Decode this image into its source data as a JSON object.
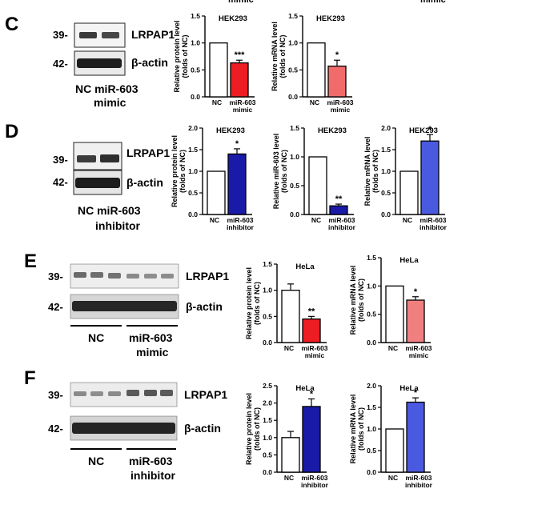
{
  "top_cut_labels": [
    "mimic",
    "mimic"
  ],
  "panels": [
    {
      "letter": "C",
      "blot": {
        "mw_labels": [
          "39-",
          "42-"
        ],
        "band_labels": [
          "LRPAP1",
          "β-actin"
        ],
        "lane_caption_lines": [
          "NC miR-603",
          "mimic"
        ]
      },
      "charts": [
        {
          "type": "bar",
          "title": "HEK293",
          "ylabel_lines": [
            "Relative protein level",
            "(folds of NC)"
          ],
          "categories": [
            "NC",
            "miR-603 mimic"
          ],
          "values": [
            1.0,
            0.63
          ],
          "errors": [
            0,
            0.05
          ],
          "ylim": [
            0,
            1.5
          ],
          "yticks": [
            "0.0",
            "0.5",
            "1.0",
            "1.5"
          ],
          "significance": "***",
          "bar_colors": [
            "#ffffff",
            "#ee1c23"
          ]
        },
        {
          "type": "bar",
          "title": "HEK293",
          "ylabel_lines": [
            "Relative mRNA level",
            "(folds of NC)"
          ],
          "categories": [
            "NC",
            "miR-603 mimic"
          ],
          "values": [
            1.0,
            0.57
          ],
          "errors": [
            0,
            0.11
          ],
          "ylim": [
            0,
            1.5
          ],
          "yticks": [
            "0.0",
            "0.5",
            "1.0",
            "1.5"
          ],
          "significance": "*",
          "bar_colors": [
            "#ffffff",
            "#f26b6b"
          ]
        }
      ]
    },
    {
      "letter": "D",
      "blot": {
        "mw_labels": [
          "39-",
          "42-"
        ],
        "band_labels": [
          "LRPAP1",
          "β-actin"
        ],
        "lane_caption_lines": [
          "NC miR-603",
          "inhibitor"
        ]
      },
      "charts": [
        {
          "type": "bar",
          "title": "HEK293",
          "ylabel_lines": [
            "Relative protein level",
            "(folds of NC)"
          ],
          "categories": [
            "NC",
            "miR-603 inhibitor"
          ],
          "values": [
            1.0,
            1.4
          ],
          "errors": [
            0,
            0.12
          ],
          "ylim": [
            0,
            2.0
          ],
          "yticks": [
            "0.0",
            "0.5",
            "1.0",
            "1.5",
            "2.0"
          ],
          "significance": "*",
          "bar_colors": [
            "#ffffff",
            "#1a1aa8"
          ]
        },
        {
          "type": "bar",
          "title": "HEK293",
          "ylabel_lines": [
            "Relative miR-603 level",
            "(folds of NC)"
          ],
          "categories": [
            "NC",
            "miR-603 inhibitor"
          ],
          "values": [
            1.0,
            0.15
          ],
          "errors": [
            0,
            0.03
          ],
          "ylim": [
            0,
            1.5
          ],
          "yticks": [
            "0.0",
            "0.5",
            "1.0",
            "1.5"
          ],
          "significance": "**",
          "bar_colors": [
            "#ffffff",
            "#1a1aa8"
          ]
        },
        {
          "type": "bar",
          "title": "HEK293",
          "ylabel_lines": [
            "Relative mRNA level",
            "(folds of NC)"
          ],
          "categories": [
            "NC",
            "miR-603 inhibitor"
          ],
          "values": [
            1.0,
            1.7
          ],
          "errors": [
            0,
            0.15
          ],
          "ylim": [
            0,
            2.0
          ],
          "yticks": [
            "0.0",
            "0.5",
            "1.0",
            "1.5",
            "2.0"
          ],
          "significance": "*",
          "bar_colors": [
            "#ffffff",
            "#4a5ae0"
          ]
        }
      ]
    },
    {
      "letter": "E",
      "blot": {
        "mw_labels": [
          "39-",
          "42-"
        ],
        "band_labels": [
          "LRPAP1",
          "β-actin"
        ],
        "group_labels": [
          "NC",
          "miR-603",
          "mimic"
        ]
      },
      "charts": [
        {
          "type": "bar",
          "title": "HeLa",
          "ylabel_lines": [
            "Relative protein level",
            "(folds of NC)"
          ],
          "categories": [
            "NC",
            "miR-603 mimic"
          ],
          "values": [
            1.0,
            0.45
          ],
          "errors": [
            0.12,
            0.05
          ],
          "ylim": [
            0,
            1.5
          ],
          "yticks": [
            "0.0",
            "0.5",
            "1.0",
            "1.5"
          ],
          "significance": "**",
          "bar_colors": [
            "#ffffff",
            "#ee1c23"
          ]
        },
        {
          "type": "bar",
          "title": "HeLa",
          "ylabel_lines": [
            "Relative mRNA level",
            "(folds of NC)"
          ],
          "categories": [
            "NC",
            "miR-603 mimic"
          ],
          "values": [
            1.0,
            0.75
          ],
          "errors": [
            0,
            0.06
          ],
          "ylim": [
            0,
            1.5
          ],
          "yticks": [
            "0.0",
            "0.5",
            "1.0",
            "1.5"
          ],
          "significance": "*",
          "bar_colors": [
            "#ffffff",
            "#f07f7f"
          ]
        }
      ]
    },
    {
      "letter": "F",
      "blot": {
        "mw_labels": [
          "39-",
          "42-"
        ],
        "band_labels": [
          "LRPAP1",
          "β-actin"
        ],
        "group_labels": [
          "NC",
          "miR-603",
          "inhibitor"
        ]
      },
      "charts": [
        {
          "type": "bar",
          "title": "HeLa",
          "ylabel_lines": [
            "Relative protein level",
            "(folds of NC)"
          ],
          "categories": [
            "NC",
            "miR-603 inhibitor"
          ],
          "values": [
            1.0,
            1.9
          ],
          "errors": [
            0.18,
            0.22
          ],
          "ylim": [
            0,
            2.5
          ],
          "yticks": [
            "0.0",
            "0.5",
            "1.0",
            "1.5",
            "2.0",
            "2.5"
          ],
          "significance": "*",
          "bar_colors": [
            "#ffffff",
            "#1a1aa8"
          ]
        },
        {
          "type": "bar",
          "title": "HeLa",
          "ylabel_lines": [
            "Relative mRNA level",
            "(folds of NC)"
          ],
          "categories": [
            "NC",
            "miR-603 inhibitor"
          ],
          "values": [
            1.0,
            1.62
          ],
          "errors": [
            0,
            0.1
          ],
          "ylim": [
            0,
            2.0
          ],
          "yticks": [
            "0.0",
            "0.5",
            "1.0",
            "1.5",
            "2.0"
          ],
          "significance": "*",
          "bar_colors": [
            "#ffffff",
            "#4a5ae0"
          ]
        }
      ]
    }
  ],
  "chart_data": [
    {
      "panel": "C",
      "type": "bar",
      "title": "HEK293",
      "ylabel": "Relative protein level (folds of NC)",
      "categories": [
        "NC",
        "miR-603 mimic"
      ],
      "values": [
        1.0,
        0.63
      ],
      "ylim": [
        0,
        1.5
      ]
    },
    {
      "panel": "C",
      "type": "bar",
      "title": "HEK293",
      "ylabel": "Relative mRNA level (folds of NC)",
      "categories": [
        "NC",
        "miR-603 mimic"
      ],
      "values": [
        1.0,
        0.57
      ],
      "ylim": [
        0,
        1.5
      ]
    },
    {
      "panel": "D",
      "type": "bar",
      "title": "HEK293",
      "ylabel": "Relative protein level (folds of NC)",
      "categories": [
        "NC",
        "miR-603 inhibitor"
      ],
      "values": [
        1.0,
        1.4
      ],
      "ylim": [
        0,
        2.0
      ]
    },
    {
      "panel": "D",
      "type": "bar",
      "title": "HEK293",
      "ylabel": "Relative miR-603 level (folds of NC)",
      "categories": [
        "NC",
        "miR-603 inhibitor"
      ],
      "values": [
        1.0,
        0.15
      ],
      "ylim": [
        0,
        1.5
      ]
    },
    {
      "panel": "D",
      "type": "bar",
      "title": "HEK293",
      "ylabel": "Relative mRNA level (folds of NC)",
      "categories": [
        "NC",
        "miR-603 inhibitor"
      ],
      "values": [
        1.0,
        1.7
      ],
      "ylim": [
        0,
        2.0
      ]
    },
    {
      "panel": "E",
      "type": "bar",
      "title": "HeLa",
      "ylabel": "Relative protein level (folds of NC)",
      "categories": [
        "NC",
        "miR-603 mimic"
      ],
      "values": [
        1.0,
        0.45
      ],
      "ylim": [
        0,
        1.5
      ]
    },
    {
      "panel": "E",
      "type": "bar",
      "title": "HeLa",
      "ylabel": "Relative mRNA level (folds of NC)",
      "categories": [
        "NC",
        "miR-603 mimic"
      ],
      "values": [
        1.0,
        0.75
      ],
      "ylim": [
        0,
        1.5
      ]
    },
    {
      "panel": "F",
      "type": "bar",
      "title": "HeLa",
      "ylabel": "Relative protein level (folds of NC)",
      "categories": [
        "NC",
        "miR-603 inhibitor"
      ],
      "values": [
        1.0,
        1.9
      ],
      "ylim": [
        0,
        2.5
      ]
    },
    {
      "panel": "F",
      "type": "bar",
      "title": "HeLa",
      "ylabel": "Relative mRNA level (folds of NC)",
      "categories": [
        "NC",
        "miR-603 inhibitor"
      ],
      "values": [
        1.0,
        1.62
      ],
      "ylim": [
        0,
        2.0
      ]
    }
  ]
}
